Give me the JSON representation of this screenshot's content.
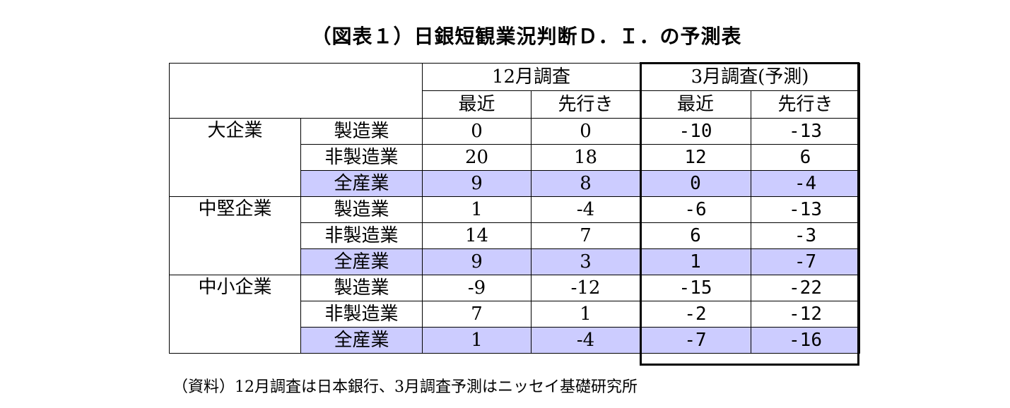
{
  "title": "（図表１）日銀短観業況判断Ｄ．Ｉ．の予測表",
  "header": {
    "survey_dec": "12月調査",
    "survey_mar": "3月調査(予測)",
    "sub": [
      "最近",
      "先行き",
      "最近",
      "先行き"
    ]
  },
  "groups": [
    {
      "name": "大企業",
      "rows": [
        {
          "sector": "製造業",
          "values": [
            "0",
            "0",
            "-10",
            "-13"
          ]
        },
        {
          "sector": "非製造業",
          "values": [
            "20",
            "18",
            "12",
            "6"
          ]
        },
        {
          "sector": "全産業",
          "values": [
            "9",
            "8",
            "0",
            "-4"
          ]
        }
      ]
    },
    {
      "name": "中堅企業",
      "rows": [
        {
          "sector": "製造業",
          "values": [
            "1",
            "-4",
            "-6",
            "-13"
          ]
        },
        {
          "sector": "非製造業",
          "values": [
            "14",
            "7",
            "6",
            "-3"
          ]
        },
        {
          "sector": "全産業",
          "values": [
            "9",
            "3",
            "1",
            "-7"
          ]
        }
      ]
    },
    {
      "name": "中小企業",
      "rows": [
        {
          "sector": "製造業",
          "values": [
            "-9",
            "-12",
            "-15",
            "-22"
          ]
        },
        {
          "sector": "非製造業",
          "values": [
            "7",
            "1",
            "-2",
            "-12"
          ]
        },
        {
          "sector": "全産業",
          "values": [
            "1",
            "-4",
            "-7",
            "-16"
          ]
        }
      ]
    }
  ],
  "source": "（資料）12月調査は日本銀行、3月調査予測はニッセイ基礎研究所",
  "colors": {
    "highlight": "#ccccff"
  }
}
